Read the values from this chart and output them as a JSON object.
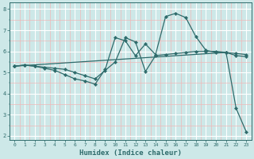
{
  "xlabel": "Humidex (Indice chaleur)",
  "line_color": "#2e6b6b",
  "background_color": "#cde8e8",
  "grid_major_color": "#ffffff",
  "grid_minor_color": "#f0b8b8",
  "xlim": [
    -0.5,
    23.5
  ],
  "ylim": [
    1.8,
    8.3
  ],
  "yticks": [
    2,
    3,
    4,
    5,
    6,
    7,
    8
  ],
  "xticks": [
    0,
    1,
    2,
    3,
    4,
    5,
    6,
    7,
    8,
    9,
    10,
    11,
    12,
    13,
    14,
    15,
    16,
    17,
    18,
    19,
    20,
    21,
    22,
    23
  ],
  "line1_x": [
    0,
    1,
    2,
    3,
    4,
    5,
    6,
    7,
    8,
    9,
    10,
    11,
    12,
    13,
    14,
    15,
    16,
    17,
    18,
    19,
    20,
    21,
    22,
    23
  ],
  "line1_y": [
    5.3,
    5.35,
    5.3,
    5.25,
    5.2,
    5.15,
    5.0,
    4.85,
    4.7,
    5.1,
    5.5,
    6.65,
    6.45,
    5.05,
    5.8,
    5.85,
    5.9,
    5.95,
    6.0,
    6.0,
    6.0,
    5.95,
    5.9,
    5.85
  ],
  "line2_x": [
    0,
    1,
    2,
    3,
    4,
    5,
    6,
    7,
    8,
    9,
    10,
    11,
    12,
    13,
    14,
    15,
    16,
    17,
    18,
    19,
    20,
    21,
    22,
    23
  ],
  "line2_y": [
    5.3,
    5.35,
    5.3,
    5.2,
    5.1,
    4.9,
    4.7,
    4.6,
    4.45,
    5.15,
    6.65,
    6.5,
    5.8,
    6.35,
    5.85,
    7.65,
    7.8,
    7.6,
    6.7,
    6.05,
    5.95,
    5.95,
    5.8,
    5.75
  ],
  "line3_x": [
    0,
    21,
    22,
    23
  ],
  "line3_y": [
    5.3,
    5.95,
    3.3,
    2.2
  ]
}
